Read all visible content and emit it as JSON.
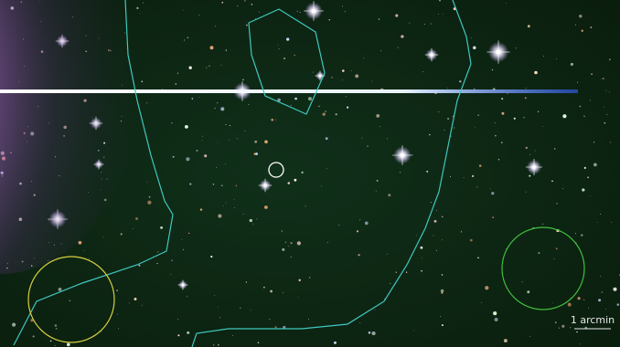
{
  "scale_bar": {
    "label": "1 arcmin"
  }
}
